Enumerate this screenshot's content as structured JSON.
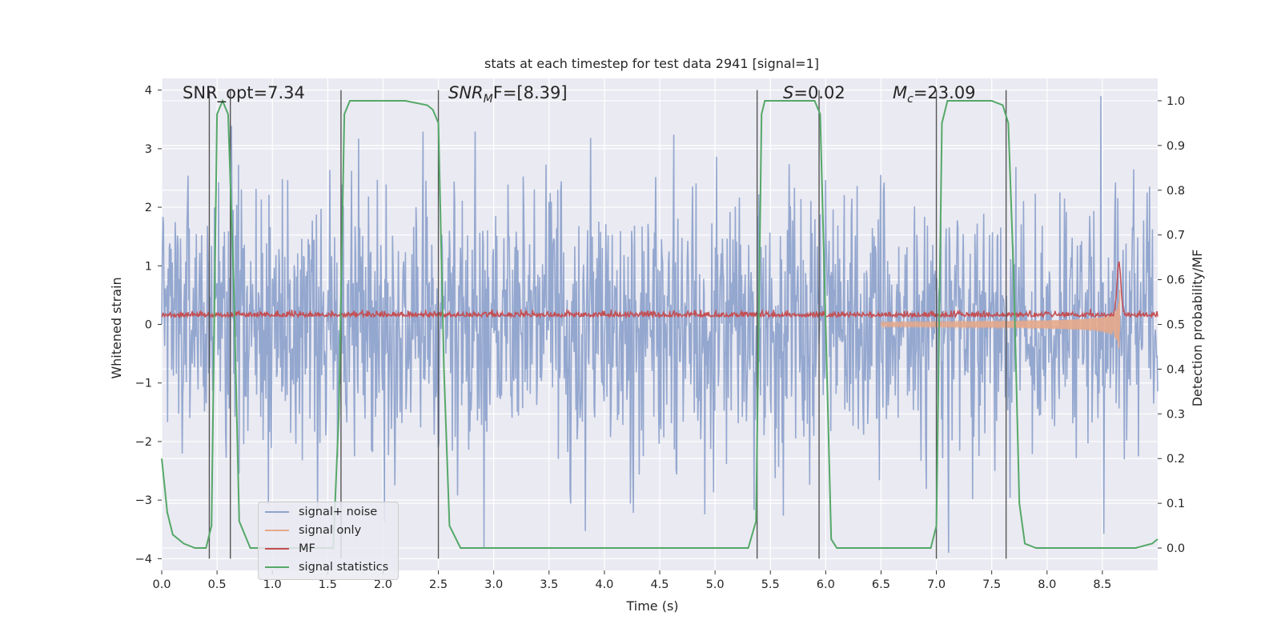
{
  "chart_data": {
    "type": "line",
    "title": "stats at each timestep for test data 2941 [signal=1]",
    "xlabel": "Time (s)",
    "ylabel_left": "Whitened strain",
    "ylabel_right": "Detection probability/MF",
    "xlim": [
      0.0,
      9.0
    ],
    "ylim_left": [
      -4.2,
      4.2
    ],
    "ylim_right": [
      -0.05,
      1.05
    ],
    "xticks": [
      "0.0",
      "0.5",
      "1.0",
      "1.5",
      "2.0",
      "2.5",
      "3.0",
      "3.5",
      "4.0",
      "4.5",
      "5.0",
      "5.5",
      "6.0",
      "6.5",
      "7.0",
      "7.5",
      "8.0",
      "8.5"
    ],
    "yticks_left": [
      "4",
      "3",
      "2",
      "1",
      "0",
      "−1",
      "−2",
      "−3",
      "−4"
    ],
    "yticks_right": [
      "1.0",
      "0.9",
      "0.8",
      "0.7",
      "0.6",
      "0.5",
      "0.4",
      "0.3",
      "0.2",
      "0.1",
      "0.0"
    ],
    "annotations": {
      "snr_opt": "SNR_opt=7.34",
      "snr_mf_base": "SNR",
      "snr_mf_sub": "M",
      "snr_mf_rest": "F=[8.39]",
      "s_stat": "=0.02",
      "s_sym": "S",
      "mc_sym": "M",
      "mc_sub": "c",
      "mc_rest": "=23.09"
    },
    "legend": {
      "items": [
        "signal+ noise",
        "signal only",
        "MF",
        "signal statistics"
      ],
      "location": "lower-left"
    },
    "series": [
      {
        "name": "signal+ noise",
        "color": "#8fa3cc",
        "style": "dense noise trace, amplitude about ±3"
      },
      {
        "name": "signal only",
        "color": "#e6a98a",
        "style": "chirp growing toward merger near 8.6 s"
      },
      {
        "name": "MF",
        "color": "#c44e52",
        "style": "matched filter ~0.1 with spike near 8.65 s"
      },
      {
        "name": "signal statistics",
        "color": "#55a868",
        "axis": "right",
        "points": [
          [
            0.0,
            0.2
          ],
          [
            0.05,
            0.08
          ],
          [
            0.1,
            0.03
          ],
          [
            0.2,
            0.01
          ],
          [
            0.3,
            0.0
          ],
          [
            0.4,
            0.0
          ],
          [
            0.45,
            0.05
          ],
          [
            0.5,
            0.97
          ],
          [
            0.55,
            1.0
          ],
          [
            0.6,
            0.97
          ],
          [
            0.65,
            0.6
          ],
          [
            0.7,
            0.06
          ],
          [
            0.8,
            0.0
          ],
          [
            1.0,
            0.0
          ],
          [
            1.55,
            0.0
          ],
          [
            1.6,
            0.3
          ],
          [
            1.65,
            0.97
          ],
          [
            1.7,
            1.0
          ],
          [
            2.2,
            1.0
          ],
          [
            2.4,
            0.99
          ],
          [
            2.45,
            0.98
          ],
          [
            2.5,
            0.95
          ],
          [
            2.55,
            0.4
          ],
          [
            2.6,
            0.05
          ],
          [
            2.7,
            0.0
          ],
          [
            3.0,
            0.0
          ],
          [
            5.3,
            0.0
          ],
          [
            5.37,
            0.06
          ],
          [
            5.42,
            0.97
          ],
          [
            5.45,
            1.0
          ],
          [
            5.9,
            1.0
          ],
          [
            5.95,
            0.97
          ],
          [
            6.0,
            0.5
          ],
          [
            6.05,
            0.02
          ],
          [
            6.1,
            0.0
          ],
          [
            6.95,
            0.0
          ],
          [
            7.0,
            0.05
          ],
          [
            7.05,
            0.95
          ],
          [
            7.1,
            1.0
          ],
          [
            7.5,
            1.0
          ],
          [
            7.6,
            0.99
          ],
          [
            7.65,
            0.95
          ],
          [
            7.7,
            0.6
          ],
          [
            7.75,
            0.1
          ],
          [
            7.8,
            0.01
          ],
          [
            7.9,
            0.0
          ],
          [
            8.8,
            0.0
          ],
          [
            8.95,
            0.01
          ],
          [
            9.0,
            0.02
          ]
        ]
      }
    ],
    "vertical_lines_s": [
      0.43,
      0.62,
      1.62,
      2.5,
      5.38,
      5.94,
      7.0,
      7.63
    ],
    "bar_color": "#555555"
  }
}
